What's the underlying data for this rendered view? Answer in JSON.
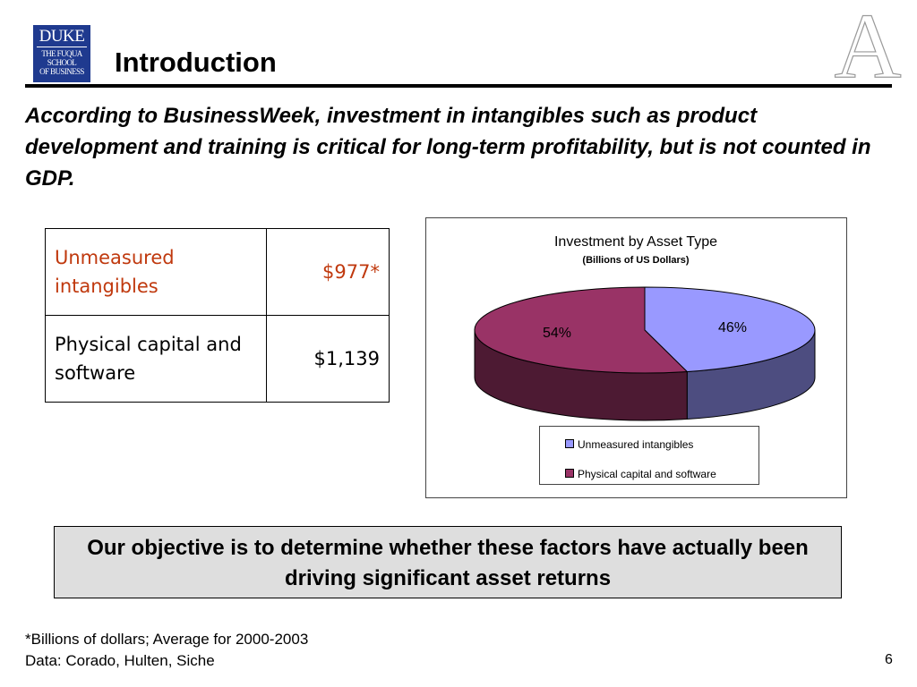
{
  "logo": {
    "line1": "DUKE",
    "line2": "THE FUQUA",
    "line3": "SCHOOL",
    "line4": "OF BUSINESS"
  },
  "title": "Introduction",
  "decoration": {
    "icon": "fuqua-a-monogram-icon",
    "letter": "A"
  },
  "intro_text": "According to BusinessWeek, investment in intangibles such as product development and training is critical for long-term profitability, but is not counted in GDP.",
  "table": {
    "rows": [
      {
        "label": "Unmeasured intangibles",
        "value": "$977*",
        "color": "#c0390e"
      },
      {
        "label": "Physical capital and software",
        "value": "$1,139",
        "color": "#000000"
      }
    ]
  },
  "chart_data": {
    "type": "pie",
    "title": "Investment by Asset Type",
    "subtitle": "(Billions of US Dollars)",
    "slices": [
      {
        "name": "Unmeasured intangibles",
        "value": 46,
        "label": "46%",
        "color": "#9999ff",
        "side_color": "#4d4d80"
      },
      {
        "name": "Physical capital and software",
        "value": 54,
        "label": "54%",
        "color": "#993366",
        "side_color": "#4d1a33"
      }
    ],
    "legend_placement": "bottom",
    "three_d": true
  },
  "objective": "Our objective is to determine whether these factors have actually been driving significant asset returns",
  "footnotes": [
    "*Billions of dollars; Average for 2000-2003",
    "Data: Corado, Hulten, Siche"
  ],
  "page_number": "6"
}
